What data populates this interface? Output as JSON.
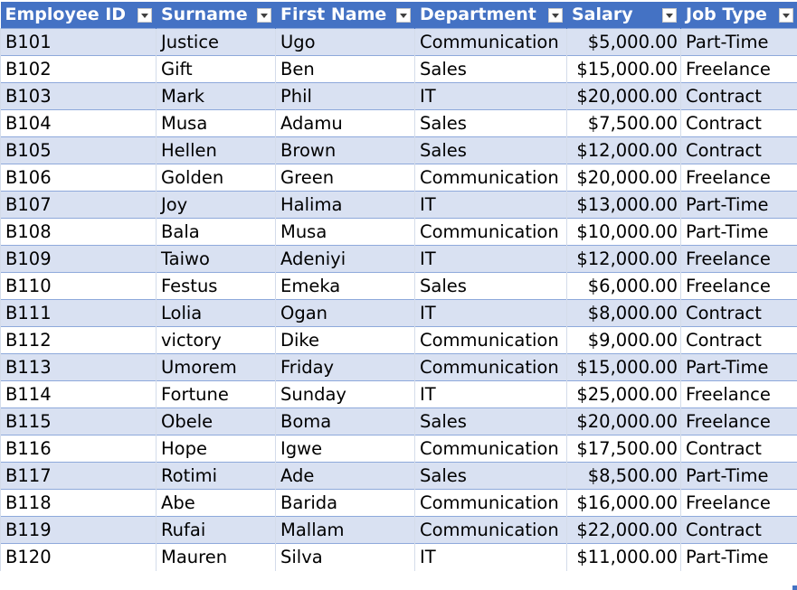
{
  "table": {
    "columns": [
      {
        "label": "Employee ID",
        "icon": "filter-dropdown-icon"
      },
      {
        "label": "Surname",
        "icon": "filter-dropdown-icon"
      },
      {
        "label": "First Name",
        "icon": "filter-dropdown-icon"
      },
      {
        "label": "Department",
        "icon": "filter-dropdown-icon"
      },
      {
        "label": "Salary",
        "icon": "filter-dropdown-icon"
      },
      {
        "label": "Job Type",
        "icon": "filter-dropdown-icon"
      }
    ],
    "rows": [
      [
        "B101",
        "Justice",
        "Ugo",
        "Communication",
        "$5,000.00",
        "Part-Time"
      ],
      [
        "B102",
        "Gift",
        "Ben",
        "Sales",
        "$15,000.00",
        "Freelance"
      ],
      [
        "B103",
        "Mark",
        "Phil",
        "IT",
        "$20,000.00",
        "Contract"
      ],
      [
        "B104",
        "Musa",
        "Adamu",
        "Sales",
        "$7,500.00",
        "Contract"
      ],
      [
        "B105",
        "Hellen",
        "Brown",
        "Sales",
        "$12,000.00",
        "Contract"
      ],
      [
        "B106",
        "Golden",
        "Green",
        "Communication",
        "$20,000.00",
        "Freelance"
      ],
      [
        "B107",
        "Joy",
        "Halima",
        "IT",
        "$13,000.00",
        "Part-Time"
      ],
      [
        "B108",
        "Bala",
        "Musa",
        "Communication",
        "$10,000.00",
        "Part-Time"
      ],
      [
        "B109",
        "Taiwo",
        "Adeniyi",
        "IT",
        "$12,000.00",
        "Freelance"
      ],
      [
        "B110",
        "Festus",
        "Emeka",
        "Sales",
        "$6,000.00",
        "Freelance"
      ],
      [
        "B111",
        "Lolia",
        "Ogan",
        "IT",
        "$8,000.00",
        "Contract"
      ],
      [
        "B112",
        "victory",
        "Dike",
        "Communication",
        "$9,000.00",
        "Contract"
      ],
      [
        "B113",
        "Umorem",
        "Friday",
        "Communication",
        "$15,000.00",
        "Part-Time"
      ],
      [
        "B114",
        "Fortune",
        "Sunday",
        "IT",
        "$25,000.00",
        "Freelance"
      ],
      [
        "B115",
        "Obele",
        "Boma",
        "Sales",
        "$20,000.00",
        "Freelance"
      ],
      [
        "B116",
        "Hope",
        "Igwe",
        "Communication",
        "$17,500.00",
        "Contract"
      ],
      [
        "B117",
        "Rotimi",
        "Ade",
        "Sales",
        "$8,500.00",
        "Part-Time"
      ],
      [
        "B118",
        "Abe",
        "Barida",
        "Communication",
        "$16,000.00",
        "Freelance"
      ],
      [
        "B119",
        "Rufai",
        "Mallam",
        "Communication",
        "$22,000.00",
        "Contract"
      ],
      [
        "B120",
        "Mauren",
        "Silva",
        "IT",
        "$11,000.00",
        "Part-Time"
      ]
    ]
  },
  "colors": {
    "header_bg": "#4472c4",
    "header_text": "#ffffff",
    "band_row": "#d9e1f2",
    "plain_row": "#ffffff"
  }
}
